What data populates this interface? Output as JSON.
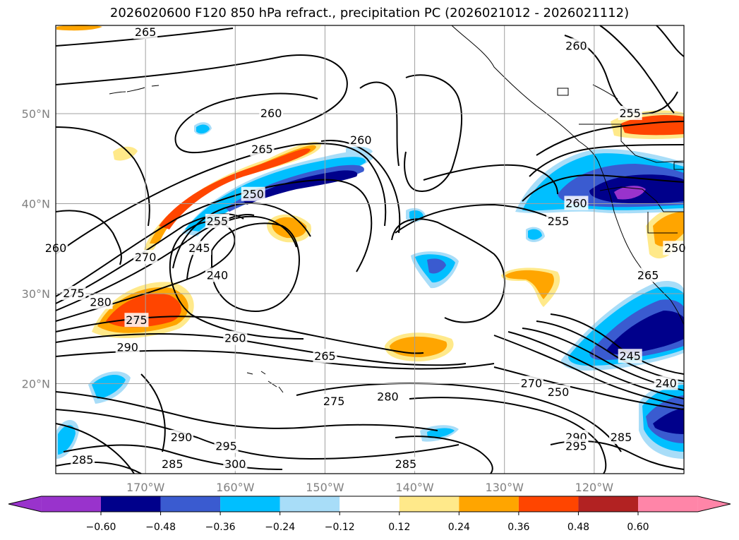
{
  "title": "2026020600 F120 850 hPa refract., precipitation PC (2026021012 - 2026021112)",
  "map": {
    "lat_labels": [
      "50°N",
      "40°N",
      "30°N",
      "20°N"
    ],
    "lat_values": [
      50,
      40,
      30,
      20
    ],
    "lon_labels": [
      "170°W",
      "160°W",
      "150°W",
      "140°W",
      "130°W",
      "120°W"
    ],
    "lon_values": [
      -170,
      -160,
      -150,
      -140,
      -130,
      -120
    ],
    "lat_range": [
      10,
      59.8
    ],
    "lon_range": [
      -180,
      -110
    ],
    "grid": true
  },
  "contour_labels": [
    {
      "text": "265",
      "lon": -170,
      "lat": 59
    },
    {
      "text": "260",
      "lon": -122,
      "lat": 57.5
    },
    {
      "text": "260",
      "lon": -156,
      "lat": 50
    },
    {
      "text": "265",
      "lon": -157,
      "lat": 46
    },
    {
      "text": "260",
      "lon": -146,
      "lat": 47
    },
    {
      "text": "255",
      "lon": -116,
      "lat": 50
    },
    {
      "text": "250",
      "lon": -158,
      "lat": 41
    },
    {
      "text": "255",
      "lon": -162,
      "lat": 38
    },
    {
      "text": "260",
      "lon": -180,
      "lat": 35
    },
    {
      "text": "270",
      "lon": -170,
      "lat": 34
    },
    {
      "text": "245",
      "lon": -164,
      "lat": 35
    },
    {
      "text": "240",
      "lon": -162,
      "lat": 32
    },
    {
      "text": "275",
      "lon": -178,
      "lat": 30
    },
    {
      "text": "280",
      "lon": -175,
      "lat": 29
    },
    {
      "text": "275",
      "lon": -171,
      "lat": 27
    },
    {
      "text": "260",
      "lon": -160,
      "lat": 25
    },
    {
      "text": "290",
      "lon": -172,
      "lat": 24
    },
    {
      "text": "265",
      "lon": -150,
      "lat": 23
    },
    {
      "text": "260",
      "lon": -122,
      "lat": 40
    },
    {
      "text": "255",
      "lon": -124,
      "lat": 38
    },
    {
      "text": "265",
      "lon": -114,
      "lat": 32
    },
    {
      "text": "250",
      "lon": -111,
      "lat": 35
    },
    {
      "text": "245",
      "lon": -116,
      "lat": 23
    },
    {
      "text": "275",
      "lon": -149,
      "lat": 18
    },
    {
      "text": "280",
      "lon": -143,
      "lat": 18.5
    },
    {
      "text": "270",
      "lon": -127,
      "lat": 20
    },
    {
      "text": "250",
      "lon": -124,
      "lat": 19
    },
    {
      "text": "240",
      "lon": -112,
      "lat": 20
    },
    {
      "text": "290",
      "lon": -122,
      "lat": 14
    },
    {
      "text": "295",
      "lon": -122,
      "lat": 13
    },
    {
      "text": "285",
      "lon": -117,
      "lat": 14
    },
    {
      "text": "290",
      "lon": -166,
      "lat": 14
    },
    {
      "text": "295",
      "lon": -161,
      "lat": 13
    },
    {
      "text": "300",
      "lon": -160,
      "lat": 11
    },
    {
      "text": "285",
      "lon": -177,
      "lat": 11.5
    },
    {
      "text": "285",
      "lon": -167,
      "lat": 11
    },
    {
      "text": "285",
      "lon": -141,
      "lat": 11
    }
  ],
  "colorbar": {
    "ticks": [
      "−0.60",
      "−0.48",
      "−0.36",
      "−0.24",
      "−0.12",
      "0.12",
      "0.24",
      "0.36",
      "0.48",
      "0.60"
    ],
    "colors": [
      "#9933cc",
      "#00008b",
      "#3a5bd0",
      "#00bfff",
      "#a8ddf8",
      "#ffffff",
      "#ffe98a",
      "#ffa500",
      "#ff4500",
      "#b22222",
      "#ff85a8"
    ]
  }
}
